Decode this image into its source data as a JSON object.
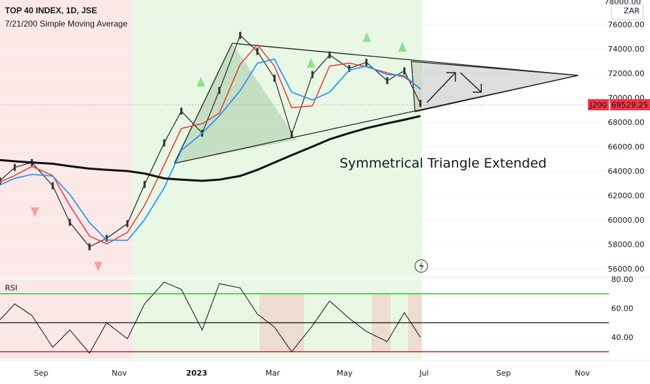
{
  "header": {
    "title": "TOP 40 INDEX, 1D, JSE",
    "indicator": "7/21/200 Simple Moving Average"
  },
  "price_axis": {
    "currency": "ZAR",
    "ticks": [
      "76000.00",
      "74000.00",
      "72000.00",
      "70000.00",
      "68000.00",
      "66000.00",
      "64000.00",
      "62000.00",
      "60000.00",
      "58000.00",
      "56000.00"
    ],
    "top_tick_partial": "78000.00",
    "symbol_label": "J200",
    "last_price": "69529.25"
  },
  "rsi_panel": {
    "label": "RSI",
    "ticks": [
      "80.00",
      "60.00",
      "40.00"
    ]
  },
  "time_axis": {
    "labels": [
      "Sep",
      "Nov",
      "2023",
      "Mar",
      "May",
      "Jul",
      "Sep",
      "Nov"
    ]
  },
  "annotation": {
    "text": "Symmetrical Triangle Extended"
  },
  "colors": {
    "bear_zone": "#fde8e8",
    "bull_zone": "#e8f8e4",
    "ma7": "#e83a3a",
    "ma21": "#2196f3",
    "ma200": "#111111",
    "rsi_upper": "#33cc33",
    "rsi_lower": "#dd2222",
    "last_price_bg": "#f23645",
    "signal_up": "#8fe08a",
    "signal_down": "#f7a0a0"
  },
  "chart_data": {
    "type": "line",
    "title": "TOP 40 INDEX, 1D, JSE",
    "y_unit": "ZAR",
    "ylim": [
      55500,
      78500
    ],
    "x": [
      "2022-07-20",
      "2022-08-01",
      "2022-08-15",
      "2022-09-01",
      "2022-09-15",
      "2022-10-01",
      "2022-10-15",
      "2022-11-01",
      "2022-11-15",
      "2022-12-01",
      "2022-12-15",
      "2023-01-01",
      "2023-01-15",
      "2023-02-01",
      "2023-02-15",
      "2023-03-01",
      "2023-03-15",
      "2023-04-01",
      "2023-04-15",
      "2023-05-01",
      "2023-05-15",
      "2023-06-01",
      "2023-06-15",
      "2023-06-28"
    ],
    "series": [
      {
        "name": "TOP 40 INDEX",
        "values": [
          63200,
          64300,
          64700,
          62800,
          59800,
          57800,
          58500,
          59700,
          62900,
          66300,
          68900,
          67100,
          70600,
          75100,
          73800,
          71600,
          67000,
          71900,
          73500,
          72400,
          72900,
          71400,
          72200,
          69529
        ]
      },
      {
        "name": "7/21/200 Simple Moving Average",
        "values": [
          64900,
          64800,
          64700,
          64600,
          64400,
          64200,
          64100,
          64000,
          63800,
          63400,
          63300,
          63200,
          63300,
          63600,
          64100,
          64700,
          65300,
          66000,
          66600,
          67100,
          67500,
          67900,
          68200,
          68500
        ]
      }
    ],
    "rsi": {
      "x": [
        "2022-07-20",
        "2022-08-01",
        "2022-08-15",
        "2022-09-01",
        "2022-09-15",
        "2022-10-01",
        "2022-10-15",
        "2022-11-01",
        "2022-11-15",
        "2022-12-01",
        "2022-12-15",
        "2023-01-01",
        "2023-01-15",
        "2023-02-01",
        "2023-02-15",
        "2023-03-01",
        "2023-03-15",
        "2023-04-01",
        "2023-04-15",
        "2023-05-01",
        "2023-05-15",
        "2023-06-01",
        "2023-06-15",
        "2023-06-28"
      ],
      "values": [
        52,
        63,
        55,
        33,
        45,
        29,
        50,
        39,
        63,
        78,
        73,
        45,
        77,
        74,
        56,
        47,
        30,
        48,
        65,
        53,
        44,
        37,
        57,
        40
      ],
      "levels": [
        70,
        50,
        30
      ],
      "ylim": [
        28,
        80
      ]
    }
  }
}
